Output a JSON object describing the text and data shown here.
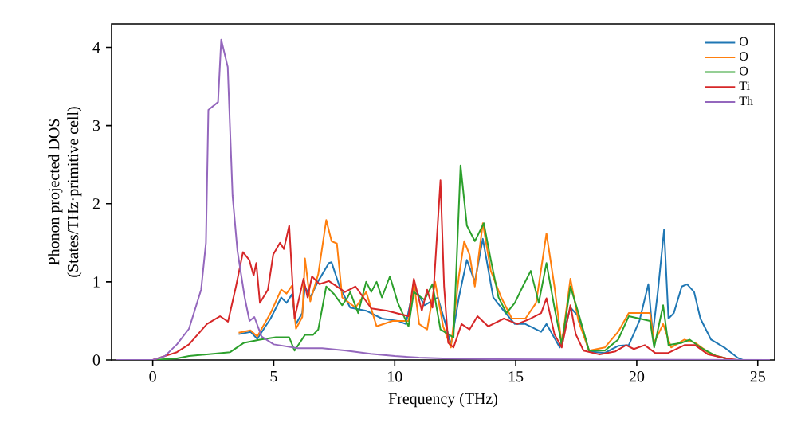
{
  "chart_data": {
    "type": "line",
    "xlabel": "Frequency (THz)",
    "ylabel": "Phonon projected DOS\n(States/THz·primitive cell)",
    "xlim": [
      -1.7,
      25.7
    ],
    "ylim": [
      0,
      4.3
    ],
    "xticks": [
      0,
      5,
      10,
      15,
      20,
      25
    ],
    "yticks": [
      0,
      1,
      2,
      3,
      4
    ],
    "legend": "top right",
    "grid": false,
    "marker": "none",
    "line_style": "solid",
    "series": [
      {
        "name": "O",
        "color": "#1f77b4",
        "x": [
          3.55,
          4.04,
          4.32,
          4.87,
          5.31,
          5.53,
          5.75,
          5.92,
          6.18,
          6.29,
          6.51,
          6.84,
          7.28,
          7.39,
          7.72,
          8.16,
          8.82,
          9.47,
          10.13,
          10.46,
          10.79,
          11.23,
          11.78,
          12.1,
          12.32,
          12.65,
          12.98,
          13.31,
          13.64,
          14.07,
          14.4,
          14.96,
          15.4,
          16.05,
          16.27,
          16.82,
          17.26,
          17.59,
          18.03,
          18.68,
          19.23,
          19.67,
          20.11,
          20.48,
          20.66,
          20.87,
          21.13,
          21.31,
          21.53,
          21.86,
          22.08,
          22.37,
          22.63,
          23.07,
          23.62,
          24.16,
          24.38,
          25.5
        ],
        "values": [
          0.33,
          0.36,
          0.27,
          0.53,
          0.8,
          0.73,
          0.84,
          0.46,
          0.6,
          0.94,
          0.8,
          1.01,
          1.24,
          1.25,
          0.94,
          0.67,
          0.63,
          0.53,
          0.5,
          0.46,
          0.94,
          0.7,
          0.8,
          0.46,
          0.19,
          0.8,
          1.28,
          1.0,
          1.55,
          0.8,
          0.67,
          0.46,
          0.46,
          0.36,
          0.46,
          0.16,
          0.67,
          0.56,
          0.11,
          0.09,
          0.18,
          0.19,
          0.5,
          0.97,
          0.33,
          0.87,
          1.67,
          0.53,
          0.6,
          0.94,
          0.97,
          0.87,
          0.53,
          0.26,
          0.16,
          0.03,
          0,
          0
        ]
      },
      {
        "name": "O",
        "color": "#ff7f0e",
        "x": [
          3.55,
          4.04,
          4.32,
          4.87,
          5.31,
          5.53,
          5.75,
          5.92,
          6.18,
          6.29,
          6.51,
          6.84,
          7.17,
          7.39,
          7.61,
          7.83,
          8.38,
          8.82,
          9.25,
          9.91,
          10.57,
          10.79,
          11.01,
          11.34,
          11.67,
          12.0,
          12.32,
          12.65,
          12.87,
          13.09,
          13.31,
          13.64,
          13.97,
          14.4,
          14.84,
          15.4,
          15.84,
          16.27,
          16.6,
          16.9,
          17.26,
          17.59,
          18.03,
          18.68,
          19.23,
          19.67,
          20.11,
          20.55,
          20.72,
          21.09,
          21.42,
          21.97,
          22.41,
          23.07,
          23.95,
          25.5
        ],
        "values": [
          0.35,
          0.38,
          0.3,
          0.6,
          0.9,
          0.85,
          0.95,
          0.4,
          0.55,
          1.3,
          0.75,
          1.1,
          1.79,
          1.52,
          1.49,
          0.8,
          0.67,
          0.87,
          0.43,
          0.5,
          0.5,
          1.0,
          0.46,
          0.39,
          1.0,
          0.43,
          0.16,
          1.07,
          1.52,
          1.35,
          0.94,
          1.75,
          1.14,
          0.8,
          0.53,
          0.53,
          0.73,
          1.62,
          0.94,
          0.2,
          1.04,
          0.5,
          0.12,
          0.16,
          0.36,
          0.6,
          0.6,
          0.6,
          0.22,
          0.46,
          0.16,
          0.26,
          0.22,
          0.07,
          0,
          0
        ]
      },
      {
        "name": "O",
        "color": "#2ca02c",
        "x": [
          -1.5,
          0,
          1,
          1.5,
          2.5,
          3.2,
          3.77,
          4.43,
          5.09,
          5.64,
          5.86,
          6.29,
          6.62,
          6.84,
          7.17,
          7.5,
          7.83,
          8.05,
          8.16,
          8.49,
          8.82,
          9.03,
          9.25,
          9.47,
          9.8,
          10.13,
          10.57,
          10.79,
          11.23,
          11.56,
          11.89,
          12.21,
          12.43,
          12.72,
          12.98,
          13.31,
          13.68,
          13.97,
          14.29,
          14.62,
          14.96,
          15.29,
          15.62,
          15.95,
          16.27,
          16.6,
          16.9,
          17.26,
          17.59,
          18.03,
          18.68,
          19.23,
          19.67,
          20.11,
          20.55,
          20.72,
          21.09,
          21.31,
          21.86,
          22.19,
          22.63,
          23.29,
          23.95,
          25.5
        ],
        "values": [
          0,
          0,
          0.02,
          0.05,
          0.08,
          0.1,
          0.22,
          0.26,
          0.29,
          0.29,
          0.12,
          0.32,
          0.32,
          0.39,
          0.94,
          0.84,
          0.7,
          0.8,
          0.87,
          0.6,
          1.0,
          0.87,
          1.0,
          0.8,
          1.07,
          0.73,
          0.43,
          0.87,
          0.77,
          0.97,
          0.39,
          0.33,
          0.29,
          2.49,
          1.72,
          1.52,
          1.75,
          1.28,
          0.8,
          0.6,
          0.73,
          0.94,
          1.14,
          0.73,
          1.24,
          0.67,
          0.2,
          0.94,
          0.6,
          0.12,
          0.12,
          0.26,
          0.56,
          0.53,
          0.5,
          0.16,
          0.7,
          0.19,
          0.22,
          0.26,
          0.16,
          0.05,
          0,
          0
        ]
      },
      {
        "name": "Ti",
        "color": "#d62728",
        "x": [
          -1.5,
          0,
          0.5,
          1,
          1.5,
          2.24,
          2.78,
          3.11,
          3.44,
          3.73,
          3.99,
          4.17,
          4.28,
          4.43,
          4.76,
          4.98,
          5.26,
          5.42,
          5.64,
          5.86,
          6.23,
          6.4,
          6.58,
          6.89,
          7.28,
          7.94,
          8.38,
          9.03,
          9.69,
          10.57,
          10.79,
          11.12,
          11.34,
          11.56,
          11.89,
          12.04,
          12.21,
          12.43,
          12.76,
          13.09,
          13.42,
          13.86,
          14.51,
          15.07,
          15.62,
          16.05,
          16.27,
          16.6,
          16.9,
          17.26,
          17.48,
          17.8,
          18.47,
          19.12,
          19.56,
          19.88,
          20.33,
          20.76,
          21.3,
          21.97,
          22.41,
          22.95,
          23.7,
          24.16,
          25.5
        ],
        "values": [
          0,
          0,
          0.05,
          0.1,
          0.2,
          0.46,
          0.56,
          0.49,
          0.94,
          1.38,
          1.28,
          1.08,
          1.24,
          0.73,
          0.9,
          1.35,
          1.5,
          1.42,
          1.72,
          0.53,
          1.04,
          0.8,
          1.07,
          0.97,
          1.01,
          0.87,
          0.94,
          0.66,
          0.63,
          0.56,
          1.04,
          0.63,
          0.9,
          0.67,
          2.3,
          0.94,
          0.22,
          0.16,
          0.46,
          0.39,
          0.56,
          0.43,
          0.53,
          0.46,
          0.53,
          0.6,
          0.79,
          0.33,
          0.16,
          0.7,
          0.33,
          0.12,
          0.07,
          0.11,
          0.19,
          0.14,
          0.19,
          0.09,
          0.09,
          0.19,
          0.19,
          0.07,
          0.02,
          0,
          0
        ]
      },
      {
        "name": "Th",
        "color": "#9467bd",
        "x": [
          -1.5,
          0,
          0.5,
          1,
          1.5,
          2,
          2.2,
          2.3,
          2.7,
          2.83,
          3.1,
          3.3,
          3.5,
          3.8,
          4.0,
          4.2,
          4.5,
          5,
          6,
          7,
          8,
          9,
          10,
          11,
          12,
          14,
          25.5
        ],
        "values": [
          0,
          0,
          0.05,
          0.2,
          0.4,
          0.9,
          1.5,
          3.2,
          3.3,
          4.1,
          3.75,
          2.1,
          1.4,
          0.8,
          0.5,
          0.55,
          0.3,
          0.2,
          0.15,
          0.15,
          0.12,
          0.08,
          0.05,
          0.03,
          0.02,
          0.01,
          0
        ]
      }
    ]
  }
}
